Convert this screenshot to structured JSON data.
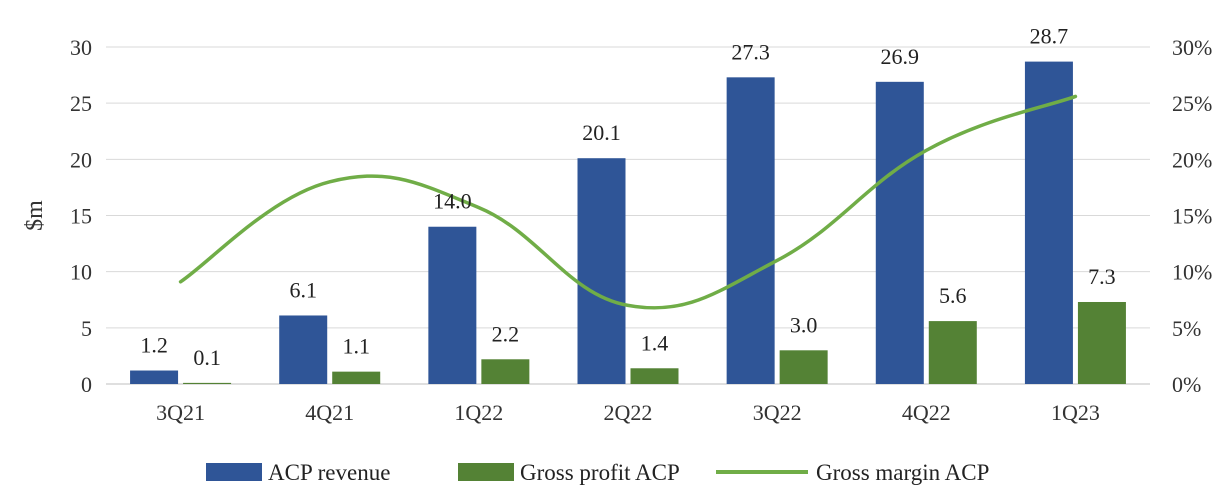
{
  "chart_data": {
    "type": "bar",
    "categories": [
      "3Q21",
      "4Q21",
      "1Q22",
      "2Q22",
      "3Q22",
      "4Q22",
      "1Q23"
    ],
    "ylabel": "$m",
    "ylim": [
      0,
      30
    ],
    "yticks": [
      0,
      5,
      10,
      15,
      20,
      25,
      30
    ],
    "y2lim": [
      0,
      30
    ],
    "y2ticks": [
      "0%",
      "5%",
      "10%",
      "15%",
      "20%",
      "25%",
      "30%"
    ],
    "grid": true,
    "legend_position": "bottom",
    "series": [
      {
        "name": "ACP revenue",
        "type": "bar",
        "axis": "left",
        "color": "#2f5597",
        "values": [
          1.2,
          6.1,
          14.0,
          20.1,
          27.3,
          26.9,
          28.7
        ],
        "labels": [
          "1.2",
          "6.1",
          "14.0",
          "20.1",
          "27.3",
          "26.9",
          "28.7"
        ]
      },
      {
        "name": "Gross profit ACP",
        "type": "bar",
        "axis": "left",
        "color": "#548235",
        "values": [
          0.1,
          1.1,
          2.2,
          1.4,
          3.0,
          5.6,
          7.3
        ],
        "labels": [
          "0.1",
          "1.1",
          "2.2",
          "1.4",
          "3.0",
          "5.6",
          "7.3"
        ]
      },
      {
        "name": "Gross margin ACP",
        "type": "line",
        "axis": "right",
        "unit": "%",
        "color": "#70ad47",
        "values": [
          9.1,
          18.0,
          15.7,
          7.0,
          11.0,
          20.8,
          25.6
        ]
      }
    ]
  }
}
